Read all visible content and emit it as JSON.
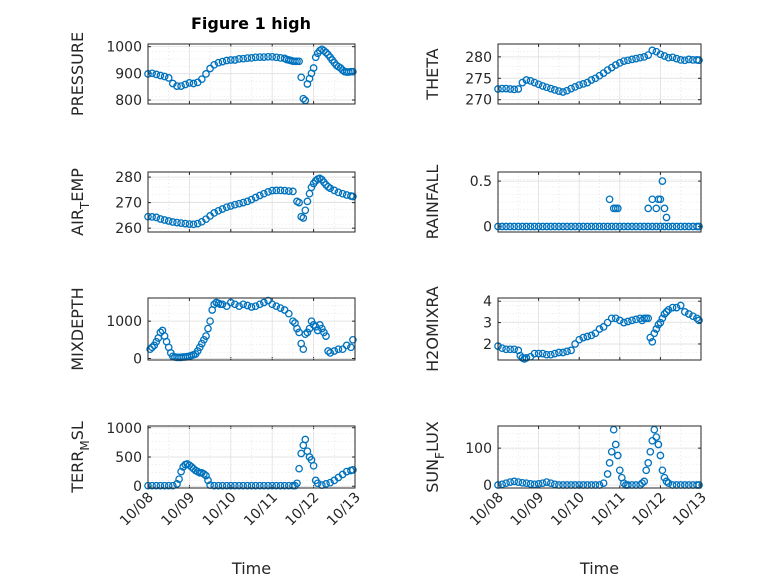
{
  "title": "Figure 1 high",
  "colors": {
    "marker": "#0072BD",
    "axis": "#262626",
    "grid": "#dcdcdc"
  },
  "chart_data": [
    {
      "type": "scatter",
      "ylabel": "PRESSURE",
      "ylabel_html": "PRESSURE",
      "yticks": [
        "800",
        "900",
        "1000"
      ],
      "ylim": [
        785,
        1010
      ],
      "xlim": [
        0,
        5
      ],
      "xticklabels": [],
      "xlabel": "",
      "grid": true,
      "marker": "circle",
      "x": [
        0.0,
        0.1,
        0.2,
        0.3,
        0.4,
        0.5,
        0.6,
        0.7,
        0.8,
        0.9,
        1.0,
        1.1,
        1.2,
        1.3,
        1.4,
        1.5,
        1.6,
        1.7,
        1.8,
        1.9,
        2.0,
        2.1,
        2.2,
        2.3,
        2.4,
        2.5,
        2.6,
        2.7,
        2.8,
        2.9,
        3.0,
        3.1,
        3.2,
        3.3,
        3.35,
        3.4,
        3.45,
        3.5,
        3.55,
        3.6,
        3.65,
        3.7,
        3.75,
        3.8,
        3.85,
        3.9,
        3.95,
        4.0,
        4.05,
        4.1,
        4.15,
        4.2,
        4.25,
        4.3,
        4.35,
        4.4,
        4.45,
        4.5,
        4.55,
        4.6,
        4.65,
        4.7,
        4.75,
        4.8,
        4.85,
        4.9,
        4.95
      ],
      "y": [
        898,
        900,
        896,
        892,
        888,
        883,
        862,
        852,
        852,
        858,
        864,
        862,
        866,
        878,
        898,
        918,
        932,
        940,
        944,
        948,
        950,
        950,
        954,
        955,
        957,
        958,
        960,
        961,
        961,
        962,
        962,
        960,
        958,
        956,
        952,
        950,
        948,
        946,
        945,
        945,
        945,
        885,
        805,
        798,
        860,
        880,
        900,
        920,
        960,
        975,
        985,
        990,
        985,
        978,
        970,
        960,
        950,
        940,
        930,
        925,
        920,
        912,
        906,
        905,
        905,
        906,
        906
      ],
      "point_spacing_note": ""
    },
    {
      "type": "scatter",
      "ylabel": "THETA",
      "yticks": [
        "270",
        "275",
        "280"
      ],
      "ylim": [
        269,
        283
      ],
      "xlim": [
        0,
        5
      ],
      "xticklabels": [],
      "xlabel": "",
      "grid": true,
      "marker": "circle",
      "x": [
        0.0,
        0.1,
        0.2,
        0.3,
        0.4,
        0.5,
        0.6,
        0.7,
        0.8,
        0.9,
        1.0,
        1.1,
        1.2,
        1.3,
        1.4,
        1.5,
        1.6,
        1.7,
        1.8,
        1.9,
        2.0,
        2.1,
        2.2,
        2.3,
        2.4,
        2.5,
        2.6,
        2.7,
        2.8,
        2.9,
        3.0,
        3.1,
        3.2,
        3.3,
        3.4,
        3.5,
        3.6,
        3.7,
        3.8,
        3.9,
        4.0,
        4.1,
        4.2,
        4.3,
        4.4,
        4.5,
        4.6,
        4.7,
        4.8,
        4.9,
        4.95
      ],
      "y": [
        272.5,
        272.6,
        272.6,
        272.5,
        272.4,
        272.5,
        274.0,
        274.6,
        274.4,
        274.0,
        273.6,
        273.2,
        272.9,
        272.6,
        272.3,
        272.0,
        271.8,
        272.1,
        272.6,
        273.0,
        273.4,
        273.7,
        274.0,
        274.6,
        275.0,
        275.6,
        276.2,
        276.9,
        277.5,
        278.1,
        278.6,
        279.0,
        279.2,
        279.4,
        279.6,
        279.8,
        280.0,
        280.4,
        281.5,
        281.2,
        280.6,
        280.2,
        279.8,
        279.9,
        279.6,
        279.3,
        279.2,
        279.4,
        279.3,
        279.3,
        279.2
      ]
    },
    {
      "type": "scatter",
      "ylabel": "AIR_TEMP",
      "yticks": [
        "260",
        "270",
        "280"
      ],
      "ylim": [
        258.5,
        282
      ],
      "xlim": [
        0,
        5
      ],
      "xticklabels": [],
      "xlabel": "",
      "grid": true,
      "marker": "circle",
      "x": [
        0.0,
        0.1,
        0.2,
        0.3,
        0.4,
        0.5,
        0.6,
        0.7,
        0.8,
        0.9,
        1.0,
        1.1,
        1.2,
        1.3,
        1.4,
        1.5,
        1.6,
        1.7,
        1.8,
        1.9,
        2.0,
        2.1,
        2.2,
        2.3,
        2.4,
        2.5,
        2.6,
        2.7,
        2.8,
        2.9,
        3.0,
        3.1,
        3.2,
        3.3,
        3.4,
        3.5,
        3.6,
        3.65,
        3.7,
        3.75,
        3.8,
        3.85,
        3.9,
        3.95,
        4.0,
        4.05,
        4.1,
        4.15,
        4.2,
        4.25,
        4.3,
        4.35,
        4.4,
        4.5,
        4.6,
        4.7,
        4.8,
        4.9,
        4.95
      ],
      "y": [
        264.5,
        264.4,
        264.2,
        263.6,
        263.2,
        262.8,
        262.4,
        262.2,
        262.0,
        261.8,
        261.6,
        261.5,
        261.8,
        262.5,
        263.5,
        264.8,
        266.0,
        266.8,
        267.5,
        268.2,
        268.7,
        269.2,
        269.6,
        270.0,
        270.5,
        271.2,
        272.0,
        272.8,
        273.5,
        274.2,
        274.7,
        274.8,
        274.8,
        274.7,
        274.5,
        274.4,
        270.5,
        270.0,
        264.5,
        264.0,
        267.0,
        270.5,
        273.5,
        276.0,
        277.5,
        278.5,
        279.2,
        279.5,
        279.0,
        278.0,
        277.0,
        276.2,
        275.6,
        274.8,
        274.0,
        273.5,
        273.0,
        272.6,
        272.4
      ]
    },
    {
      "type": "scatter",
      "ylabel": "RAINFALL",
      "yticks": [
        "0",
        "0.5"
      ],
      "ylim": [
        -0.06,
        0.6
      ],
      "xlim": [
        0,
        5
      ],
      "xticklabels": [],
      "xlabel": "",
      "grid": true,
      "marker": "circle",
      "x": [
        0.0,
        0.1,
        0.2,
        0.3,
        0.4,
        0.5,
        0.6,
        0.7,
        0.8,
        0.9,
        1.0,
        1.1,
        1.2,
        1.3,
        1.4,
        1.5,
        1.6,
        1.7,
        1.8,
        1.9,
        2.0,
        2.1,
        2.2,
        2.3,
        2.4,
        2.5,
        2.6,
        2.7,
        2.8,
        2.9,
        3.0,
        3.1,
        3.2,
        3.3,
        3.4,
        3.5,
        3.6,
        3.7,
        3.8,
        3.9,
        4.0,
        4.1,
        4.2,
        4.3,
        4.4,
        4.5,
        4.6,
        4.7,
        4.8,
        4.9,
        4.95,
        2.75,
        2.85,
        2.9,
        2.95,
        3.7,
        3.8,
        3.9,
        3.95,
        4.0,
        4.05,
        4.1,
        4.15
      ],
      "y": [
        0,
        0,
        0,
        0,
        0,
        0,
        0,
        0,
        0,
        0,
        0,
        0,
        0,
        0,
        0,
        0,
        0,
        0,
        0,
        0,
        0,
        0,
        0,
        0,
        0,
        0,
        0,
        0,
        0,
        0,
        0,
        0,
        0,
        0,
        0,
        0,
        0,
        0,
        0,
        0,
        0,
        0,
        0,
        0,
        0,
        0,
        0,
        0,
        0,
        0,
        0,
        0.3,
        0.2,
        0.2,
        0.2,
        0.2,
        0.3,
        0.2,
        0.3,
        0.3,
        0.5,
        0.2,
        0.1
      ]
    },
    {
      "type": "scatter",
      "ylabel": "MIXDEPTH",
      "yticks": [
        "0",
        "1000"
      ],
      "ylim": [
        -40,
        1620
      ],
      "xlim": [
        0,
        5
      ],
      "xticklabels": [],
      "xlabel": "",
      "grid": true,
      "marker": "circle",
      "x": [
        0.05,
        0.1,
        0.15,
        0.2,
        0.25,
        0.3,
        0.35,
        0.4,
        0.45,
        0.5,
        0.55,
        0.6,
        0.65,
        0.7,
        0.75,
        0.8,
        0.85,
        0.9,
        0.95,
        1.0,
        1.05,
        1.1,
        1.15,
        1.2,
        1.25,
        1.3,
        1.35,
        1.4,
        1.45,
        1.5,
        1.55,
        1.6,
        1.65,
        1.7,
        1.75,
        1.8,
        1.9,
        2.0,
        2.1,
        2.2,
        2.3,
        2.4,
        2.5,
        2.6,
        2.7,
        2.8,
        2.9,
        3.0,
        3.1,
        3.2,
        3.3,
        3.4,
        3.5,
        3.55,
        3.6,
        3.65,
        3.7,
        3.75,
        3.8,
        3.85,
        3.9,
        3.95,
        4.0,
        4.05,
        4.1,
        4.15,
        4.2,
        4.25,
        4.3,
        4.35,
        4.4,
        4.5,
        4.6,
        4.7,
        4.8,
        4.9,
        4.95
      ],
      "y": [
        250,
        300,
        350,
        450,
        550,
        700,
        750,
        600,
        450,
        300,
        150,
        60,
        40,
        30,
        30,
        30,
        40,
        40,
        50,
        60,
        80,
        100,
        120,
        200,
        300,
        400,
        500,
        600,
        800,
        1000,
        1300,
        1450,
        1500,
        1480,
        1450,
        1450,
        1400,
        1500,
        1450,
        1400,
        1450,
        1420,
        1380,
        1400,
        1450,
        1500,
        1550,
        1450,
        1400,
        1350,
        1300,
        1200,
        1000,
        950,
        800,
        700,
        400,
        250,
        650,
        700,
        800,
        1000,
        900,
        850,
        750,
        900,
        800,
        700,
        600,
        200,
        150,
        200,
        250,
        250,
        350,
        300,
        500
      ]
    },
    {
      "type": "scatter",
      "ylabel": "H2OMIXRA",
      "yticks": [
        "2",
        "3",
        "4"
      ],
      "ylim": [
        1.25,
        4.15
      ],
      "xlim": [
        0,
        5
      ],
      "xticklabels": [],
      "xlabel": "",
      "grid": true,
      "marker": "circle",
      "x": [
        0.0,
        0.1,
        0.2,
        0.3,
        0.4,
        0.5,
        0.55,
        0.6,
        0.65,
        0.7,
        0.8,
        0.9,
        1.0,
        1.1,
        1.2,
        1.3,
        1.4,
        1.5,
        1.6,
        1.7,
        1.8,
        1.9,
        2.0,
        2.1,
        2.2,
        2.3,
        2.4,
        2.5,
        2.6,
        2.7,
        2.8,
        2.9,
        3.0,
        3.1,
        3.2,
        3.3,
        3.4,
        3.5,
        3.55,
        3.6,
        3.65,
        3.7,
        3.75,
        3.8,
        3.85,
        3.9,
        3.95,
        4.0,
        4.05,
        4.1,
        4.15,
        4.2,
        4.3,
        4.4,
        4.5,
        4.6,
        4.7,
        4.8,
        4.9,
        4.95
      ],
      "y": [
        1.9,
        1.8,
        1.75,
        1.75,
        1.75,
        1.7,
        1.45,
        1.35,
        1.3,
        1.35,
        1.4,
        1.55,
        1.55,
        1.55,
        1.5,
        1.5,
        1.55,
        1.6,
        1.6,
        1.65,
        1.7,
        2.0,
        2.2,
        2.3,
        2.35,
        2.4,
        2.5,
        2.7,
        2.8,
        3.0,
        3.2,
        3.2,
        3.1,
        3.0,
        3.05,
        3.1,
        3.15,
        3.2,
        3.1,
        3.2,
        3.2,
        3.2,
        2.3,
        2.1,
        2.5,
        2.7,
        2.9,
        3.0,
        3.2,
        3.4,
        3.5,
        3.6,
        3.7,
        3.7,
        3.8,
        3.5,
        3.4,
        3.3,
        3.2,
        3.1
      ]
    },
    {
      "type": "scatter",
      "ylabel": "TERR_MSL",
      "yticks": [
        "0",
        "500",
        "1000"
      ],
      "ylim": [
        -30,
        1030
      ],
      "xlim": [
        0,
        5
      ],
      "xticklabels": [
        "10/08",
        "10/09",
        "10/10",
        "10/11",
        "10/12",
        "10/13"
      ],
      "xlabel": "Time",
      "grid": true,
      "marker": "circle",
      "x": [
        0.0,
        0.1,
        0.2,
        0.3,
        0.4,
        0.5,
        0.6,
        0.7,
        0.75,
        0.8,
        0.85,
        0.9,
        0.95,
        1.0,
        1.05,
        1.1,
        1.15,
        1.2,
        1.25,
        1.3,
        1.35,
        1.4,
        1.45,
        1.5,
        1.6,
        1.7,
        1.8,
        1.9,
        2.0,
        2.1,
        2.2,
        2.3,
        2.4,
        2.5,
        2.6,
        2.7,
        2.8,
        2.9,
        3.0,
        3.1,
        3.2,
        3.3,
        3.4,
        3.5,
        3.55,
        3.6,
        3.65,
        3.7,
        3.75,
        3.8,
        3.85,
        3.9,
        3.95,
        4.0,
        4.05,
        4.1,
        4.2,
        4.3,
        4.4,
        4.5,
        4.6,
        4.7,
        4.8,
        4.9,
        4.95
      ],
      "y": [
        10,
        10,
        10,
        10,
        10,
        10,
        10,
        40,
        120,
        250,
        330,
        370,
        380,
        360,
        330,
        300,
        270,
        250,
        230,
        230,
        210,
        180,
        100,
        20,
        10,
        10,
        10,
        10,
        10,
        10,
        10,
        10,
        10,
        10,
        10,
        10,
        10,
        10,
        10,
        10,
        10,
        10,
        10,
        10,
        10,
        50,
        300,
        560,
        700,
        800,
        600,
        500,
        450,
        350,
        100,
        50,
        20,
        40,
        60,
        100,
        150,
        200,
        250,
        270,
        280
      ]
    },
    {
      "type": "scatter",
      "ylabel": "SUN_FLUX",
      "yticks": [
        "0",
        "100"
      ],
      "ylim": [
        -8,
        160
      ],
      "xlim": [
        0,
        5
      ],
      "xticklabels": [
        "10/08",
        "10/09",
        "10/10",
        "10/11",
        "10/12",
        "10/13"
      ],
      "xlabel": "Time",
      "grid": true,
      "marker": "circle",
      "x": [
        0.0,
        0.1,
        0.2,
        0.3,
        0.4,
        0.5,
        0.6,
        0.7,
        0.8,
        0.9,
        1.0,
        1.1,
        1.2,
        1.3,
        1.4,
        1.5,
        1.6,
        1.7,
        1.8,
        1.9,
        2.0,
        2.1,
        2.2,
        2.3,
        2.4,
        2.5,
        2.6,
        2.7,
        2.75,
        2.8,
        2.85,
        2.9,
        2.95,
        3.0,
        3.05,
        3.1,
        3.15,
        3.2,
        3.3,
        3.4,
        3.5,
        3.55,
        3.6,
        3.65,
        3.7,
        3.75,
        3.8,
        3.85,
        3.9,
        3.95,
        4.0,
        4.05,
        4.1,
        4.15,
        4.2,
        4.3,
        4.4,
        4.5,
        4.6,
        4.7,
        4.8,
        4.9,
        4.95
      ],
      "y": [
        0,
        2,
        5,
        8,
        10,
        8,
        6,
        5,
        3,
        2,
        3,
        5,
        8,
        5,
        2,
        0,
        0,
        0,
        0,
        0,
        0,
        0,
        0,
        0,
        0,
        0,
        5,
        30,
        60,
        90,
        150,
        110,
        80,
        40,
        20,
        5,
        0,
        0,
        0,
        0,
        0,
        5,
        10,
        40,
        60,
        90,
        120,
        150,
        130,
        110,
        80,
        40,
        20,
        10,
        5,
        0,
        0,
        0,
        0,
        0,
        0,
        0,
        0
      ]
    }
  ]
}
